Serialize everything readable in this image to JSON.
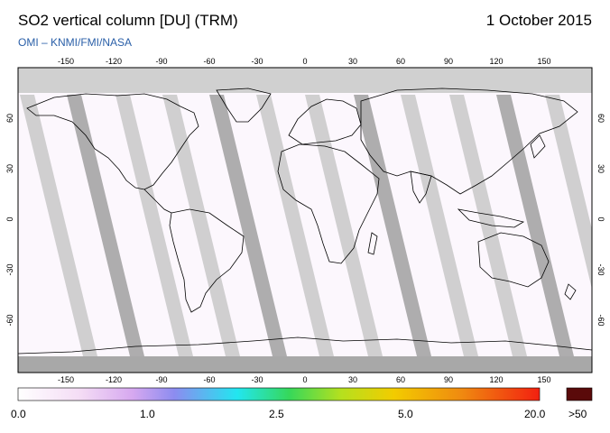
{
  "header": {
    "title": "SO2 vertical column [DU] (TRM)",
    "date": "1 October 2015",
    "credit": "OMI  –  KNMI/FMI/NASA"
  },
  "axes": {
    "lon_ticks": [
      "-150",
      "-120",
      "-90",
      "-60",
      "-30",
      "0",
      "30",
      "60",
      "90",
      "120",
      "150"
    ],
    "lat_ticks": [
      "60",
      "30",
      "0",
      "-30",
      "-60"
    ]
  },
  "colorbar": {
    "labels": [
      "0.0",
      "1.0",
      "2.5",
      "5.0",
      "20.0",
      ">50"
    ],
    "colors": [
      "#ffffff",
      "#f4dcf5",
      "#d6a8f0",
      "#8c8cf0",
      "#22e6f0",
      "#36d85a",
      "#b6e01e",
      "#f2cc00",
      "#f08a10",
      "#f22010"
    ],
    "overflow_color": "#5a0a0a"
  },
  "map": {
    "ocean_color": "#ffffff",
    "gap_color": "#c8c8c8",
    "dark_gap_color": "#a0a0a0",
    "polar_color": "#d0d0d0"
  }
}
